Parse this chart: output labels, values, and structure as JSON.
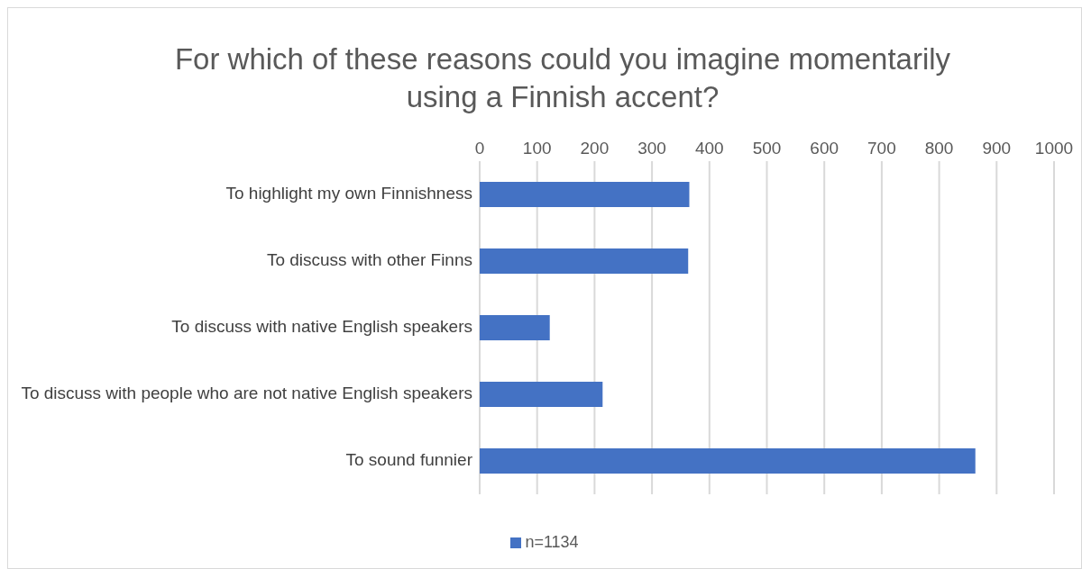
{
  "chart_data": {
    "type": "bar",
    "orientation": "horizontal",
    "title": "For which of these reasons could you imagine momentarily\nusing a Finnish accent?",
    "categories": [
      "To highlight my own Finnishness",
      "To discuss with other Finns",
      "To discuss with native English speakers",
      "To discuss with people who are not native English speakers",
      "To sound funnier"
    ],
    "series": [
      {
        "name": "n=1134",
        "color": "#4472c4",
        "values": [
          365,
          363,
          122,
          214,
          863
        ]
      }
    ],
    "xlim": [
      0,
      1000
    ],
    "xticks": [
      0,
      100,
      200,
      300,
      400,
      500,
      600,
      700,
      800,
      900,
      1000
    ],
    "grid": "x",
    "legend": "bottom"
  }
}
